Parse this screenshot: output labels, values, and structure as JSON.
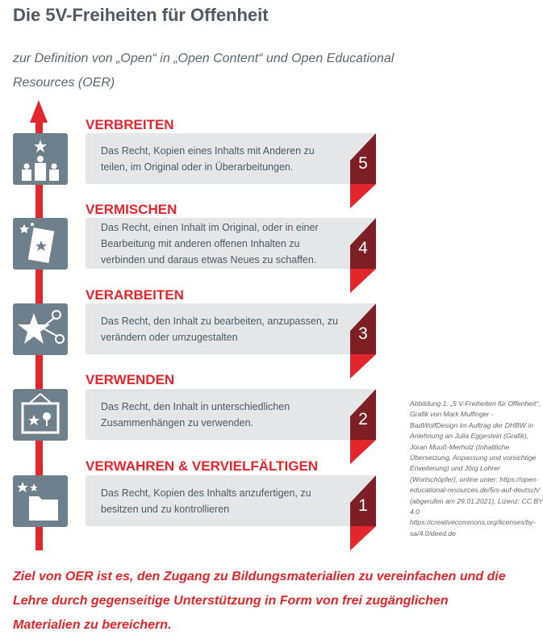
{
  "title": "Die 5V-Freiheiten für Offenheit",
  "subtitle": "zur Definition von „Open“ in „Open Content“ und Open Educational Resources (OER)",
  "items": [
    {
      "heading": "VERBREITEN",
      "text": "Das Recht, Kopien eines Inhalts mit Anderen zu teilen, im Original oder in Überarbeitungen.",
      "number": "5",
      "icon": "people-star-icon"
    },
    {
      "heading": "VERMISCHEN",
      "text": "Das Recht, einen Inhalt im Original, oder in einer Bearbeitung mit anderen offenen Inhalten zu verbinden und daraus etwas Neues zu schaffen.",
      "number": "4",
      "icon": "mixed-document-icon"
    },
    {
      "heading": "VERARBEITEN",
      "text": "Das Recht, den Inhalt zu bearbeiten, anzupassen, zu verändern oder umzugestalten",
      "number": "3",
      "icon": "scissors-star-icon"
    },
    {
      "heading": "VERWENDEN",
      "text": "Das Recht, den Inhalt in unterschiedlichen Zusammenhängen zu verwenden.",
      "number": "2",
      "icon": "picture-icon"
    },
    {
      "heading": "VERWAHREN & VERVIELFÄLTIGEN",
      "text": "Das Recht, Kopien des Inhalts anzufertigen, zu besitzen und zu kontrollieren",
      "number": "1",
      "icon": "folder-icon"
    }
  ],
  "caption": "Abbildung 1: „5 V-Freiheiten für Offenheit“, Grafik von Mark Mulfinger - BadWolfDesign im Auftrag der DHBW in Anlehnung an Julia Eggestein (Grafik), Jöran Muuß-Merholz (Inhaltliche Übersetzung, Anpassung und vorsichtige Erweiterung) und Jörg Lohrer (Wortschöpfer), online unter: https://open-educational-resources.de/5rs-auf-deutsch/ (abgerufen am 29.01.2021), Lizenz: CC BY 4.0 https://creativecommons.org/licenses/by-sa/4.0/deed.de",
  "goal": "Ziel von OER ist es, den Zugang zu Bildungsmaterialien zu vereinfachen und die Lehre durch gegenseitige Unterstützung in Form von frei zugänglichen Materialien zu bereichern.",
  "colors": {
    "accent": "#e3262b",
    "dark_red": "#7e1f26",
    "icon_bg": "#6f808d",
    "box_bg": "#e4e6e8"
  }
}
